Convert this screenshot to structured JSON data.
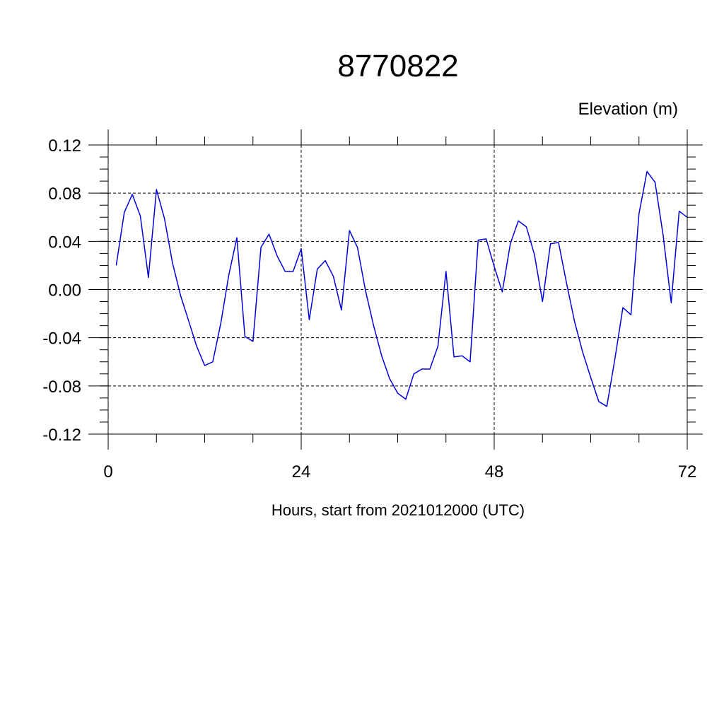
{
  "chart_data": {
    "type": "line",
    "title": "8770822",
    "ylabel": "Elevation (m)",
    "xlabel": "Hours, start from 2021012000 (UTC)",
    "xlim": [
      0,
      72
    ],
    "ylim": [
      -0.12,
      0.12
    ],
    "x_ticks": [
      0,
      24,
      48,
      72
    ],
    "x_tick_labels": [
      "0",
      "24",
      "48",
      "72"
    ],
    "y_ticks": [
      0.12,
      0.08,
      0.04,
      0.0,
      -0.04,
      -0.08,
      -0.12
    ],
    "y_tick_labels": [
      "0.12",
      "0.08",
      "0.04",
      "0.00",
      "-0.04",
      "-0.08",
      "-0.12"
    ],
    "grid": true,
    "line_color": "#0000dd",
    "series": [
      {
        "x": [
          1,
          2,
          3,
          4,
          5,
          6,
          7,
          8,
          9,
          10,
          11,
          12,
          13,
          14,
          15,
          16,
          17,
          18,
          19,
          20,
          21,
          22,
          23,
          24,
          25,
          26,
          27,
          28,
          29,
          30,
          31,
          32,
          33,
          34,
          35,
          36,
          37,
          38,
          39,
          40,
          41,
          42,
          43,
          44,
          45,
          46,
          47,
          48,
          49,
          50,
          51,
          52,
          53,
          54,
          55,
          56,
          57,
          58,
          59,
          60,
          61,
          62,
          63,
          64,
          65,
          66,
          67,
          68,
          69,
          70,
          71,
          72
        ],
        "values": [
          0.02,
          0.064,
          0.079,
          0.061,
          0.01,
          0.083,
          0.059,
          0.022,
          -0.005,
          -0.026,
          -0.047,
          -0.063,
          -0.06,
          -0.028,
          0.012,
          0.043,
          -0.039,
          -0.043,
          0.035,
          0.046,
          0.028,
          0.015,
          0.015,
          0.034,
          -0.025,
          0.017,
          0.024,
          0.011,
          -0.017,
          0.049,
          0.035,
          -0.001,
          -0.03,
          -0.055,
          -0.074,
          -0.086,
          -0.091,
          -0.07,
          -0.066,
          -0.066,
          -0.047,
          0.015,
          -0.056,
          -0.055,
          -0.06,
          0.041,
          0.042,
          0.019,
          -0.002,
          0.038,
          0.057,
          0.052,
          0.029,
          -0.01,
          0.038,
          0.039,
          0.005,
          -0.027,
          -0.052,
          -0.073,
          -0.093,
          -0.097,
          -0.058,
          -0.015,
          -0.021,
          0.063,
          0.098,
          0.089,
          0.045,
          -0.011,
          0.065,
          0.06
        ]
      }
    ]
  }
}
